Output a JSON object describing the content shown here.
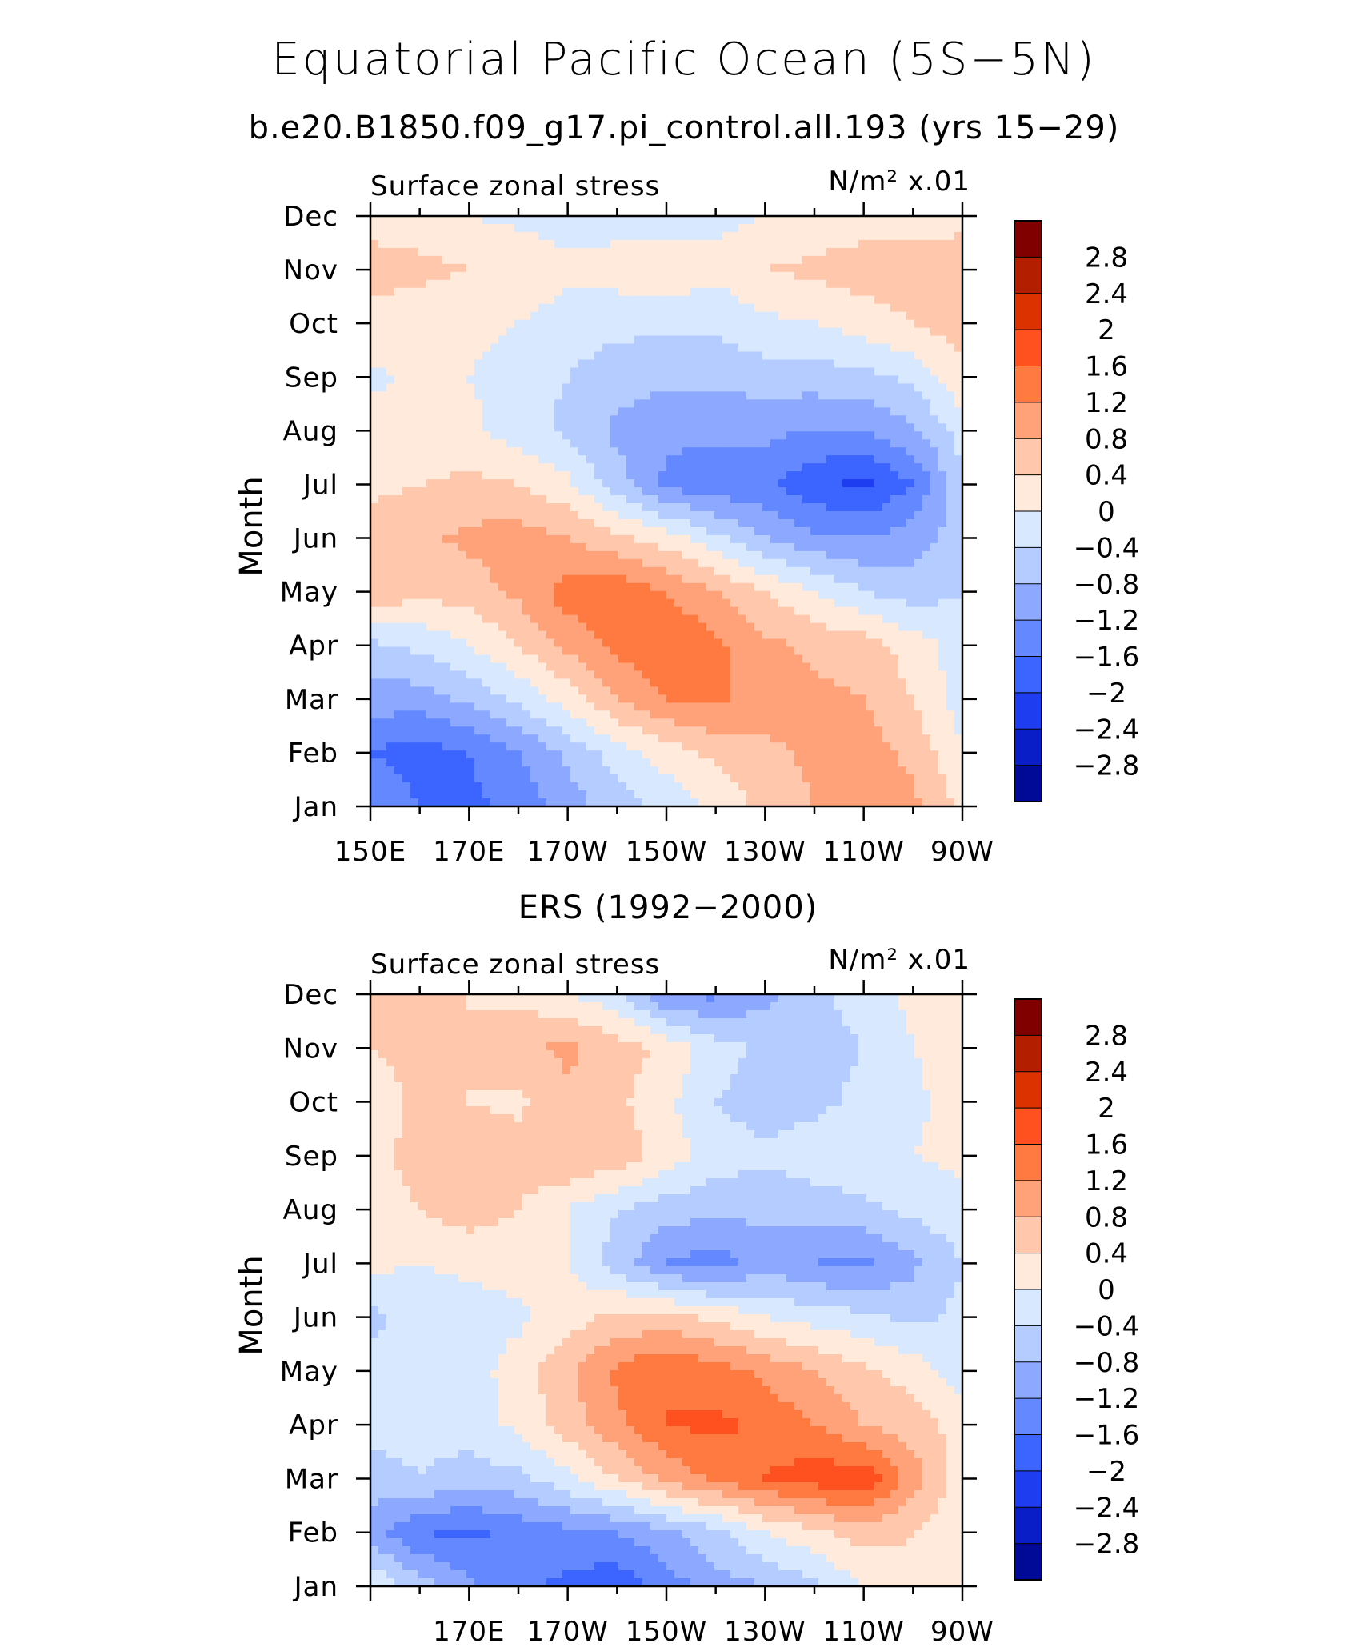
{
  "title": "Equatorial Pacific Ocean (5S−5N)",
  "subtitle": "b.e20.B1850.f09_g17.pi_control.all.193 (yrs 15−29)",
  "colorbar": {
    "labels": [
      "2.8",
      "2.4",
      "2",
      "1.6",
      "1.2",
      "0.8",
      "0.4",
      "0",
      "−0.4",
      "−0.8",
      "−1.2",
      "−1.6",
      "−2",
      "−2.4",
      "−2.8"
    ],
    "colors": [
      "#800000",
      "#b41e00",
      "#dc3200",
      "#ff5020",
      "#ff7a40",
      "#ffa27a",
      "#ffc8ad",
      "#ffeadb",
      "#d7e8ff",
      "#b4ccff",
      "#8ca8ff",
      "#6488ff",
      "#3c64ff",
      "#1e3cf0",
      "#0a1ec8",
      "#000a96"
    ]
  },
  "chart_data": [
    {
      "type": "heatmap",
      "panel_title": "",
      "left_label": "Surface zonal stress",
      "units_label": "N/m² x.01",
      "ylabel": "Month",
      "y_ticks": [
        "Jan",
        "Feb",
        "Mar",
        "Apr",
        "May",
        "Jun",
        "Jul",
        "Aug",
        "Sep",
        "Oct",
        "Nov",
        "Dec"
      ],
      "x_ticks": [
        "150E",
        "170E",
        "170W",
        "150W",
        "130W",
        "110W",
        "90W"
      ],
      "xlim": [
        "150E",
        "90W"
      ],
      "contour_interval": 0.4,
      "levels": [
        -2.8,
        -2.4,
        -2,
        -1.6,
        -1.2,
        -0.8,
        -0.4,
        0,
        0.4,
        0.8,
        1.2,
        1.6,
        2,
        2.4,
        2.8
      ],
      "lon_grid": [
        150,
        160,
        170,
        180,
        190,
        200,
        210,
        220,
        230,
        240,
        250,
        260,
        270
      ],
      "values": [
        [
          -1.2,
          -1.6,
          -1.7,
          -1.5,
          -1.0,
          -0.6,
          -0.3,
          0.1,
          0.5,
          0.8,
          1.0,
          0.9,
          0.3
        ],
        [
          -1.6,
          -1.8,
          -1.6,
          -1.2,
          -0.7,
          -0.2,
          0.2,
          0.5,
          0.7,
          0.9,
          1.0,
          0.7,
          0.0
        ],
        [
          -1.0,
          -1.0,
          -0.7,
          -0.3,
          0.2,
          0.8,
          1.2,
          1.3,
          1.0,
          0.9,
          0.8,
          0.4,
          -0.2
        ],
        [
          -0.5,
          -0.3,
          0.0,
          0.4,
          0.9,
          1.3,
          1.6,
          1.3,
          0.9,
          0.7,
          0.6,
          0.2,
          -0.2
        ],
        [
          0.8,
          0.5,
          0.6,
          0.9,
          1.4,
          1.5,
          1.2,
          0.8,
          0.4,
          0.0,
          -0.4,
          -0.6,
          -0.4
        ],
        [
          0.6,
          0.7,
          0.9,
          1.0,
          0.8,
          0.5,
          0.2,
          -0.3,
          -0.8,
          -1.1,
          -1.2,
          -1.0,
          -0.6
        ],
        [
          0.3,
          0.4,
          0.5,
          0.4,
          0.1,
          -0.6,
          -1.3,
          -1.5,
          -1.5,
          -1.9,
          -2.1,
          -1.6,
          -0.5
        ],
        [
          0.2,
          0.1,
          0.1,
          -0.2,
          -0.5,
          -0.9,
          -1.1,
          -1.1,
          -1.1,
          -1.2,
          -1.2,
          -0.9,
          -0.2
        ],
        [
          -0.1,
          0.1,
          0.0,
          -0.2,
          -0.4,
          -0.6,
          -0.7,
          -0.7,
          -0.6,
          -0.6,
          -0.5,
          -0.3,
          0.3
        ],
        [
          0.3,
          0.2,
          0.1,
          0.0,
          -0.2,
          -0.3,
          -0.3,
          -0.3,
          -0.1,
          0.0,
          0.2,
          0.4,
          0.6
        ],
        [
          0.5,
          0.5,
          0.4,
          0.3,
          0.1,
          0.2,
          0.3,
          0.1,
          0.4,
          0.5,
          0.6,
          0.6,
          0.6
        ],
        [
          0.3,
          0.2,
          0.0,
          -0.1,
          -0.2,
          -0.2,
          -0.2,
          -0.1,
          0.0,
          0.1,
          0.2,
          0.2,
          0.3
        ]
      ]
    },
    {
      "type": "heatmap",
      "panel_title": "ERS (1992−2000)",
      "left_label": "Surface zonal stress",
      "units_label": "N/m² x.01",
      "ylabel": "Month",
      "y_ticks": [
        "Jan",
        "Feb",
        "Mar",
        "Apr",
        "May",
        "Jun",
        "Jul",
        "Aug",
        "Sep",
        "Oct",
        "Nov",
        "Dec"
      ],
      "x_ticks": [
        "170E",
        "170W",
        "150W",
        "130W",
        "110W",
        "90W"
      ],
      "xlim": [
        "150E",
        "90W"
      ],
      "contour_interval": 0.4,
      "levels": [
        -2.8,
        -2.4,
        -2,
        -1.6,
        -1.2,
        -0.8,
        -0.4,
        0,
        0.4,
        0.8,
        1.2,
        1.6,
        2,
        2.4,
        2.8
      ],
      "lon_grid": [
        150,
        160,
        170,
        180,
        190,
        200,
        210,
        220,
        230,
        240,
        250,
        260,
        270
      ],
      "values": [
        [
          0.0,
          -0.6,
          -1.1,
          -1.5,
          -1.7,
          -1.9,
          -1.4,
          -1.0,
          -0.8,
          -0.5,
          0.0,
          0.3,
          0.3
        ],
        [
          -1.0,
          -1.6,
          -1.7,
          -1.5,
          -1.3,
          -1.2,
          -0.9,
          -0.5,
          0.0,
          0.3,
          0.6,
          0.4,
          0.0
        ],
        [
          -0.6,
          -0.4,
          -0.6,
          -0.5,
          -0.1,
          0.4,
          0.9,
          1.3,
          1.6,
          1.8,
          1.9,
          1.0,
          0.2
        ],
        [
          -0.2,
          -0.3,
          -0.2,
          0.1,
          0.6,
          1.1,
          1.6,
          1.7,
          1.5,
          1.2,
          0.8,
          0.6,
          0.2
        ],
        [
          -0.3,
          -0.3,
          -0.2,
          0.2,
          0.7,
          1.3,
          1.6,
          1.4,
          1.1,
          0.8,
          0.5,
          0.2,
          -0.2
        ],
        [
          -0.5,
          -0.2,
          -0.2,
          -0.1,
          0.2,
          0.5,
          0.5,
          0.3,
          0.0,
          -0.2,
          -0.3,
          -0.5,
          -0.3
        ],
        [
          0.1,
          0.0,
          0.1,
          0.2,
          0.0,
          -0.6,
          -1.2,
          -1.4,
          -1.0,
          -1.2,
          -1.3,
          -0.9,
          -0.4
        ],
        [
          0.3,
          0.4,
          0.6,
          0.4,
          0.0,
          -0.4,
          -0.6,
          -0.7,
          -0.7,
          -0.6,
          -0.5,
          -0.3,
          -0.1
        ],
        [
          0.3,
          0.5,
          0.7,
          0.6,
          0.8,
          0.7,
          0.2,
          -0.2,
          -0.3,
          -0.2,
          -0.1,
          0.0,
          0.1
        ],
        [
          0.2,
          0.5,
          0.4,
          0.3,
          0.7,
          0.5,
          0.1,
          -0.4,
          -0.6,
          -0.5,
          -0.3,
          -0.1,
          0.2
        ],
        [
          0.4,
          0.5,
          0.4,
          0.7,
          0.9,
          0.6,
          0.3,
          -0.2,
          -0.5,
          -0.6,
          -0.4,
          0.0,
          0.2
        ],
        [
          0.5,
          0.7,
          0.4,
          0.3,
          0.0,
          -0.3,
          -1.2,
          -1.3,
          -0.9,
          -0.5,
          -0.2,
          0.1,
          0.3
        ]
      ]
    }
  ]
}
